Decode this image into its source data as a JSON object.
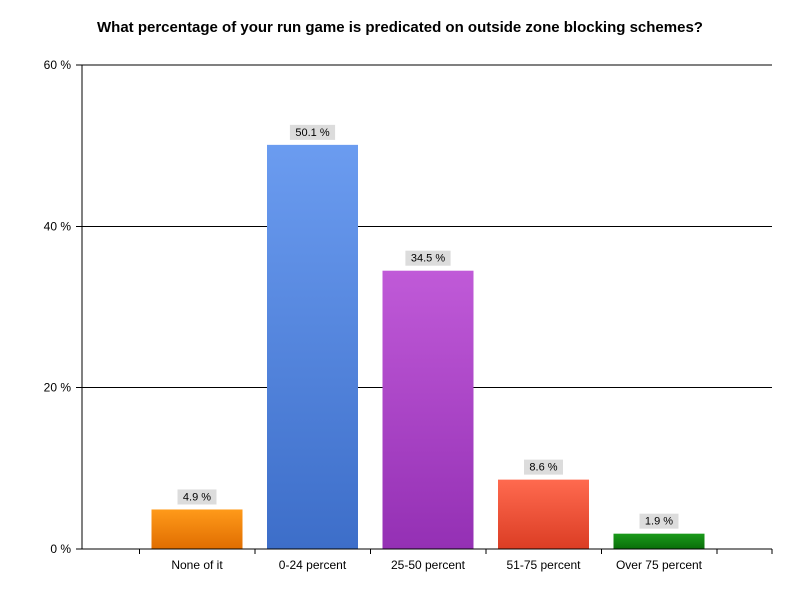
{
  "chart_data": {
    "type": "bar",
    "title": "What percentage of your run game is predicated on outside zone blocking schemes?",
    "xlabel": "",
    "ylabel": "",
    "categories": [
      "None of it",
      "0-24 percent",
      "25-50 percent",
      "51-75 percent",
      "Over 75 percent"
    ],
    "values": [
      4.9,
      50.1,
      34.5,
      8.6,
      1.9
    ],
    "data_labels": [
      "4.9 %",
      "50.1 %",
      "34.5 %",
      "8.6 %",
      "1.9 %"
    ],
    "ylim": [
      0,
      60
    ],
    "yticks": [
      0,
      20,
      40,
      60
    ],
    "ytick_labels": [
      "0 %",
      "20 %",
      "40 %",
      "60 %"
    ],
    "grid": true,
    "legend": "none",
    "bar_colors": [
      {
        "top": "#ff9a1a",
        "bottom": "#e06d00"
      },
      {
        "top": "#6b9cf0",
        "bottom": "#3d6ec9"
      },
      {
        "top": "#c05ad8",
        "bottom": "#9430b4"
      },
      {
        "top": "#ff6a4f",
        "bottom": "#db3d24"
      },
      {
        "top": "#1a9a1a",
        "bottom": "#0a6e0a"
      }
    ],
    "label_background": "#dcdcdc"
  }
}
